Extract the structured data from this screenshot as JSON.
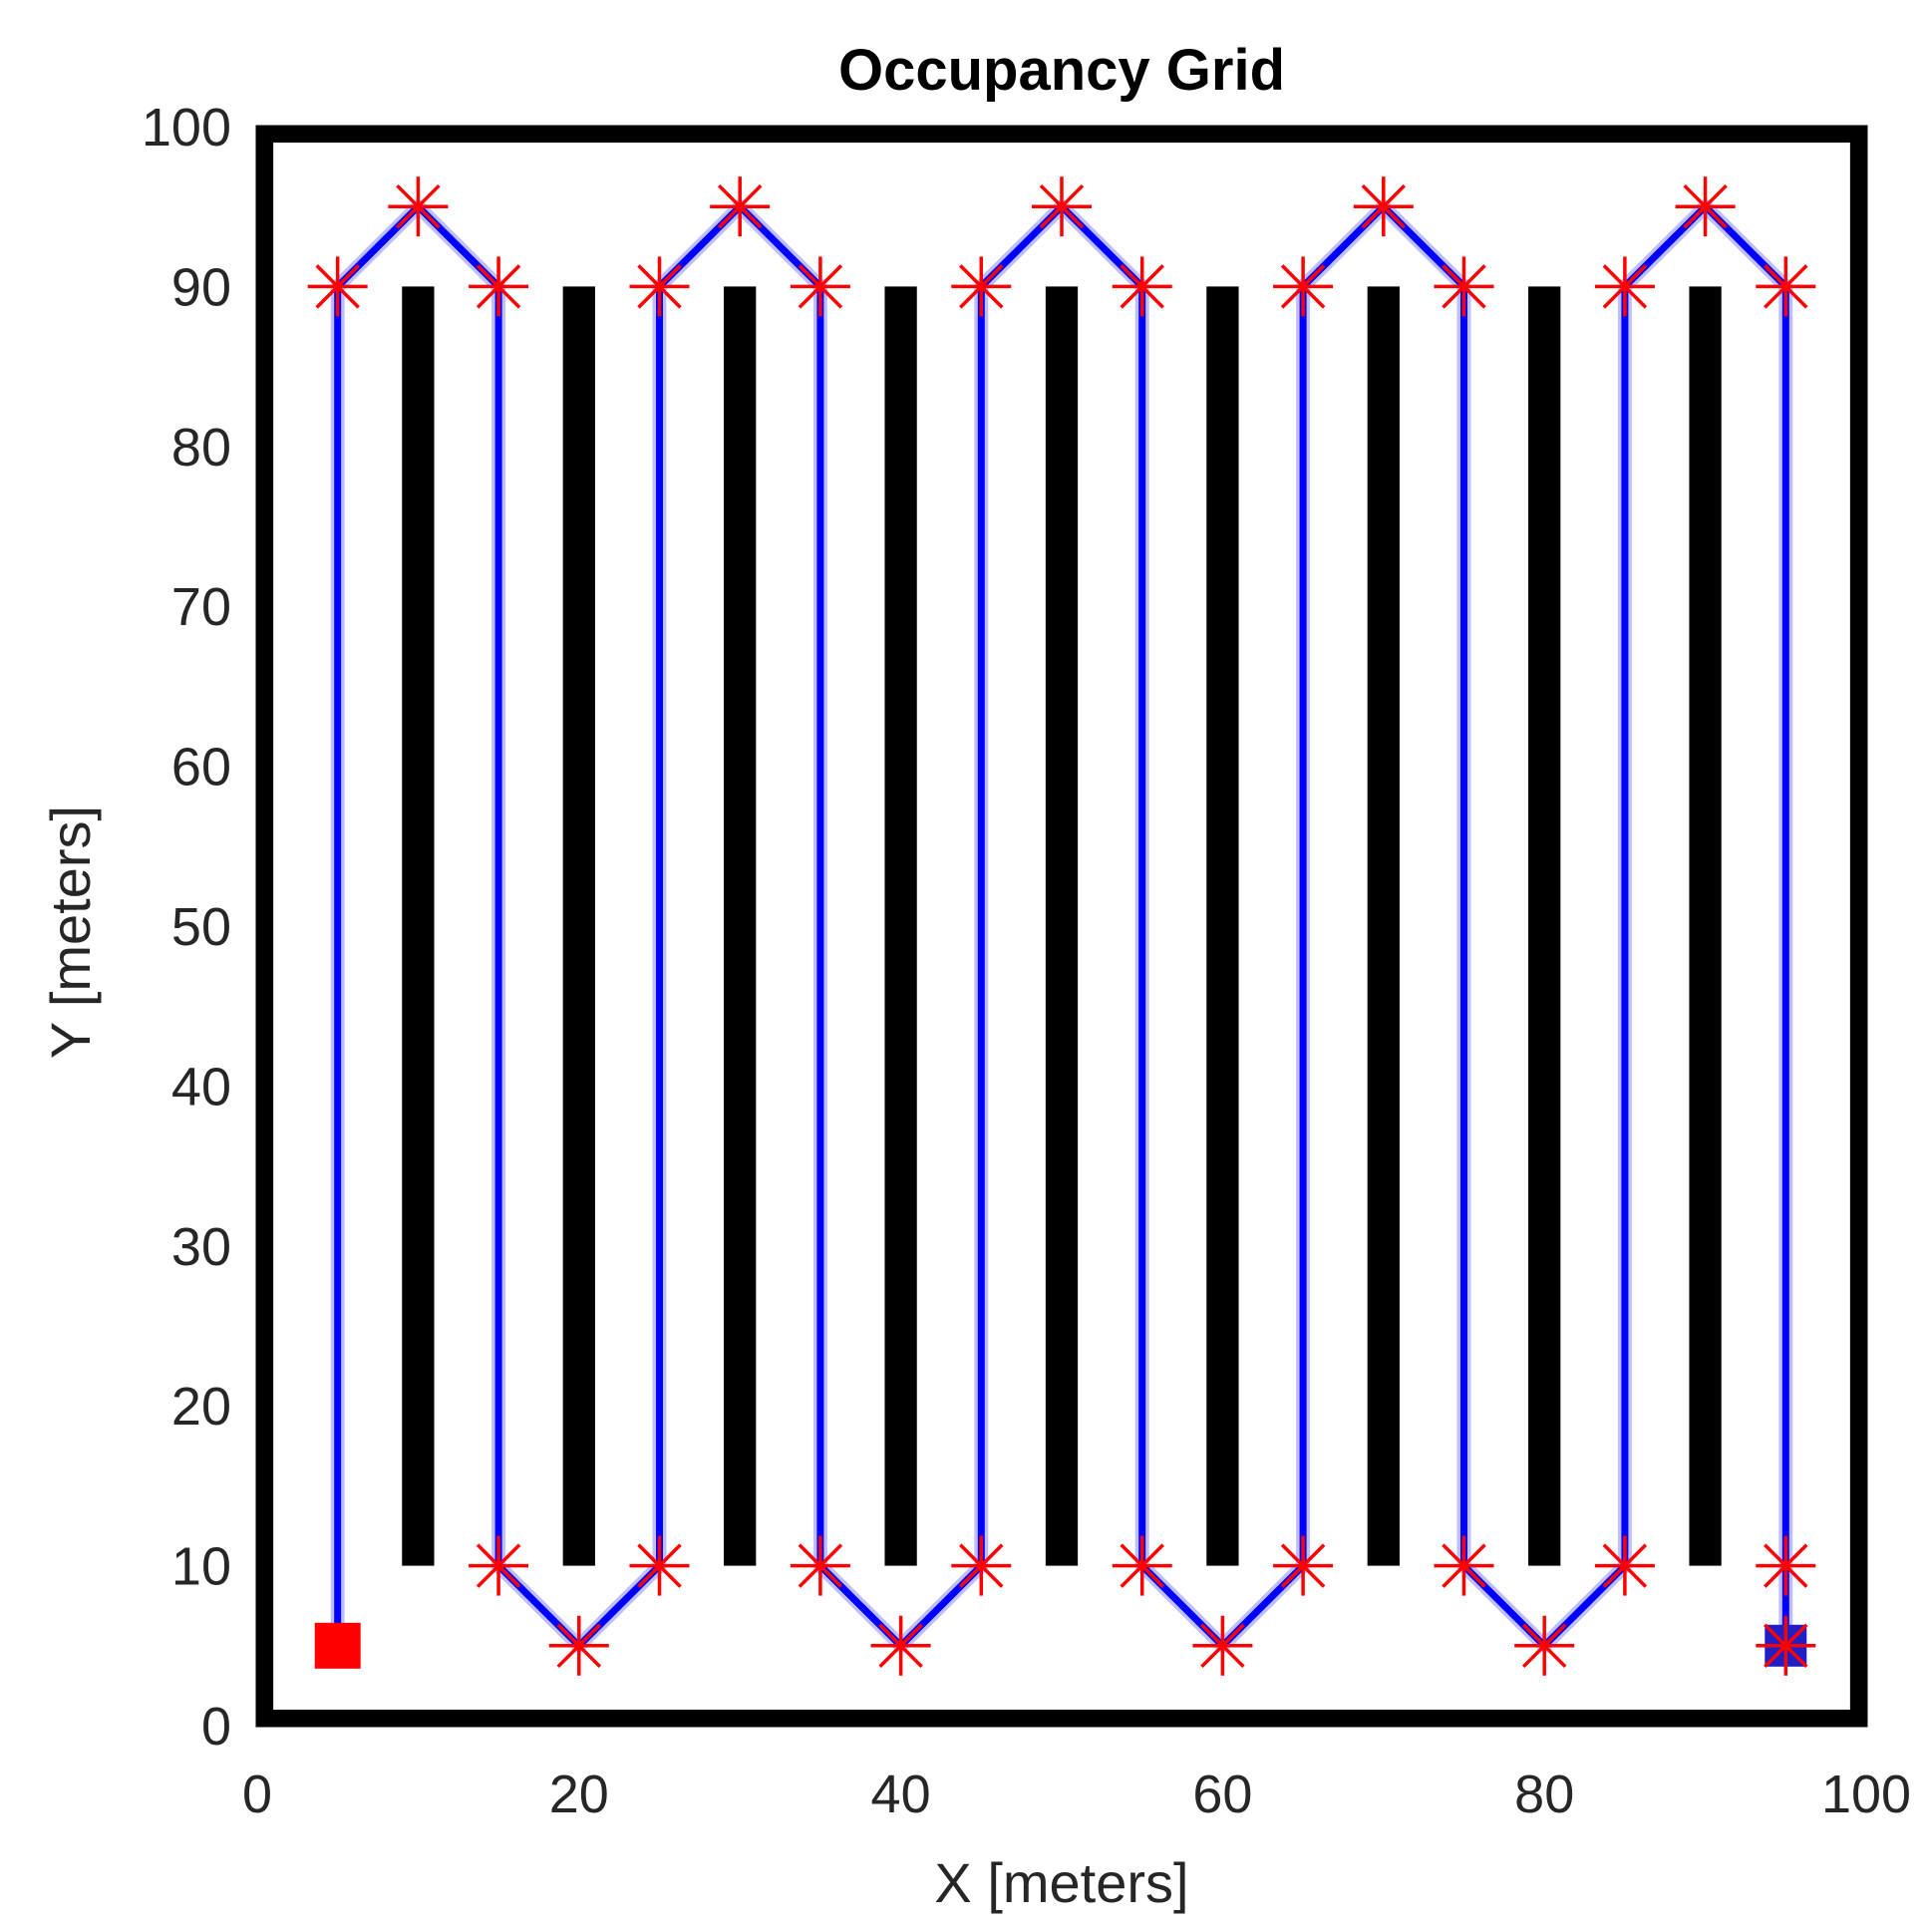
{
  "chart_data": {
    "type": "scatter",
    "title": "Occupancy Grid",
    "xlabel": "X [meters]",
    "ylabel": "Y [meters]",
    "xlim": [
      0,
      100
    ],
    "ylim": [
      0,
      100
    ],
    "xticks": [
      "0",
      "20",
      "40",
      "60",
      "80",
      "100"
    ],
    "yticks": [
      "0",
      "10",
      "20",
      "30",
      "40",
      "50",
      "60",
      "70",
      "80",
      "90",
      "100"
    ],
    "grid": false,
    "colors": {
      "obstacle": "#000000",
      "path": "#0000ff",
      "waypoint": "#ff0000",
      "start": "#ff0000",
      "goal": "#1f1fc8"
    },
    "obstacles": [
      {
        "x0": 9,
        "x1": 11,
        "y0": 10,
        "y1": 90
      },
      {
        "x0": 19,
        "x1": 21,
        "y0": 10,
        "y1": 90
      },
      {
        "x0": 29,
        "x1": 31,
        "y0": 10,
        "y1": 90
      },
      {
        "x0": 39,
        "x1": 41,
        "y0": 10,
        "y1": 90
      },
      {
        "x0": 49,
        "x1": 51,
        "y0": 10,
        "y1": 90
      },
      {
        "x0": 59,
        "x1": 61,
        "y0": 10,
        "y1": 90
      },
      {
        "x0": 69,
        "x1": 71,
        "y0": 10,
        "y1": 90
      },
      {
        "x0": 79,
        "x1": 81,
        "y0": 10,
        "y1": 90
      },
      {
        "x0": 89,
        "x1": 91,
        "y0": 10,
        "y1": 90
      },
      {
        "x0": 0,
        "x1": 100,
        "y0": 0,
        "y1": 1
      },
      {
        "x0": 0,
        "x1": 100,
        "y0": 99,
        "y1": 100
      },
      {
        "x0": 0,
        "x1": 1,
        "y0": 0,
        "y1": 100
      },
      {
        "x0": 99,
        "x1": 100,
        "y0": 0,
        "y1": 100
      }
    ],
    "path": [
      [
        5,
        5
      ],
      [
        5,
        90
      ],
      [
        10,
        95
      ],
      [
        15,
        90
      ],
      [
        15,
        10
      ],
      [
        20,
        5
      ],
      [
        25,
        10
      ],
      [
        25,
        90
      ],
      [
        30,
        95
      ],
      [
        35,
        90
      ],
      [
        35,
        10
      ],
      [
        40,
        5
      ],
      [
        45,
        10
      ],
      [
        45,
        90
      ],
      [
        50,
        95
      ],
      [
        55,
        90
      ],
      [
        55,
        10
      ],
      [
        60,
        5
      ],
      [
        65,
        10
      ],
      [
        65,
        90
      ],
      [
        70,
        95
      ],
      [
        75,
        90
      ],
      [
        75,
        10
      ],
      [
        80,
        5
      ],
      [
        85,
        10
      ],
      [
        85,
        90
      ],
      [
        90,
        95
      ],
      [
        95,
        90
      ],
      [
        95,
        10
      ],
      [
        95,
        5
      ]
    ],
    "waypoints": [
      [
        5,
        90
      ],
      [
        10,
        95
      ],
      [
        15,
        90
      ],
      [
        15,
        10
      ],
      [
        20,
        5
      ],
      [
        25,
        10
      ],
      [
        25,
        90
      ],
      [
        30,
        95
      ],
      [
        35,
        90
      ],
      [
        35,
        10
      ],
      [
        40,
        5
      ],
      [
        45,
        10
      ],
      [
        45,
        90
      ],
      [
        50,
        95
      ],
      [
        55,
        90
      ],
      [
        55,
        10
      ],
      [
        60,
        5
      ],
      [
        65,
        10
      ],
      [
        65,
        90
      ],
      [
        70,
        95
      ],
      [
        75,
        90
      ],
      [
        75,
        10
      ],
      [
        80,
        5
      ],
      [
        85,
        10
      ],
      [
        85,
        90
      ],
      [
        90,
        95
      ],
      [
        95,
        90
      ],
      [
        95,
        10
      ],
      [
        95,
        5
      ]
    ],
    "start": [
      5,
      5
    ],
    "goal": [
      95,
      5
    ]
  }
}
